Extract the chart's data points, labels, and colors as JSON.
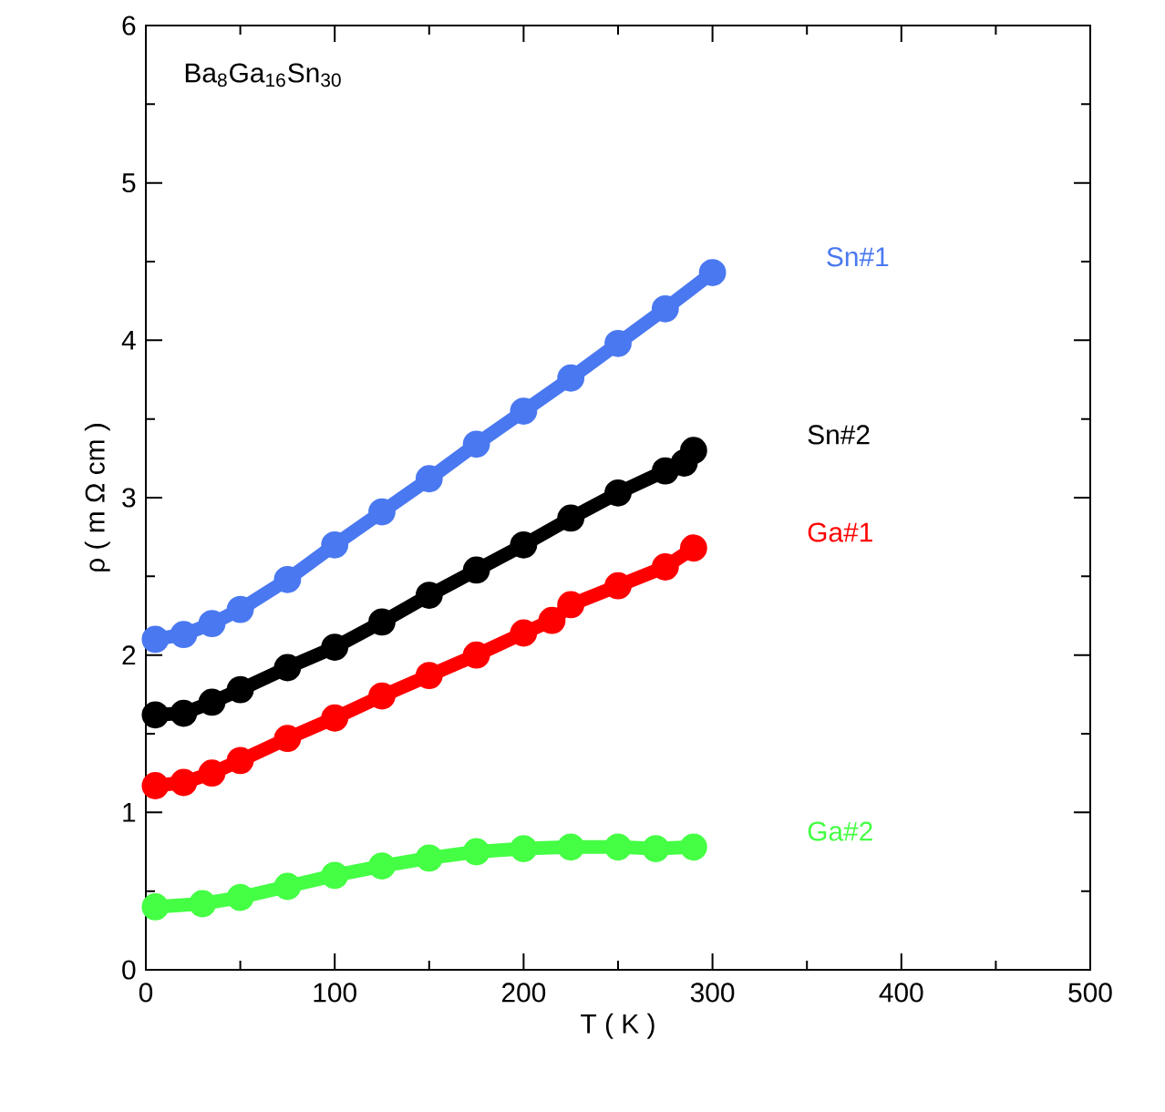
{
  "chart_data": {
    "type": "line",
    "xlabel": "T ( K )",
    "ylabel": "ρ ( m Ω cm )",
    "annotations": [
      "Ba$_{8}$Ga$_{16}$Sn$_{30}$"
    ],
    "xlim": [
      0,
      500
    ],
    "xticks": [
      0,
      100,
      200,
      300,
      400,
      500
    ],
    "ylim": [
      0,
      6
    ],
    "yticks": [
      0,
      1,
      2,
      3,
      4,
      5,
      6
    ],
    "grid": false,
    "legend": false,
    "marker": "circle",
    "series": [
      {
        "name": "Sn#1",
        "color": "#4a78f0",
        "x": [
          5,
          20,
          35,
          50,
          75,
          100,
          125,
          150,
          175,
          200,
          225,
          250,
          275,
          300
        ],
        "values": [
          2.1,
          2.13,
          2.2,
          2.29,
          2.48,
          2.7,
          2.91,
          3.12,
          3.34,
          3.55,
          3.76,
          3.98,
          4.2,
          4.43
        ]
      },
      {
        "name": "Sn#2",
        "color": "#000000",
        "x": [
          5,
          20,
          35,
          50,
          75,
          100,
          125,
          150,
          175,
          200,
          225,
          250,
          275,
          285,
          290
        ],
        "values": [
          1.62,
          1.63,
          1.7,
          1.78,
          1.92,
          2.05,
          2.21,
          2.38,
          2.54,
          2.7,
          2.87,
          3.03,
          3.17,
          3.22,
          3.3
        ]
      },
      {
        "name": "Ga#1",
        "color": "#ff0000",
        "x": [
          5,
          20,
          35,
          50,
          75,
          100,
          125,
          150,
          175,
          200,
          215,
          225,
          250,
          275,
          290
        ],
        "values": [
          1.17,
          1.19,
          1.25,
          1.33,
          1.47,
          1.6,
          1.74,
          1.87,
          2.0,
          2.14,
          2.22,
          2.32,
          2.44,
          2.56,
          2.68
        ]
      },
      {
        "name": "Ga#2",
        "color": "#44ff44",
        "x": [
          5,
          30,
          50,
          75,
          100,
          125,
          150,
          175,
          200,
          225,
          250,
          270,
          290
        ],
        "values": [
          0.4,
          0.42,
          0.46,
          0.53,
          0.6,
          0.66,
          0.71,
          0.75,
          0.77,
          0.78,
          0.78,
          0.77,
          0.78
        ]
      }
    ]
  }
}
